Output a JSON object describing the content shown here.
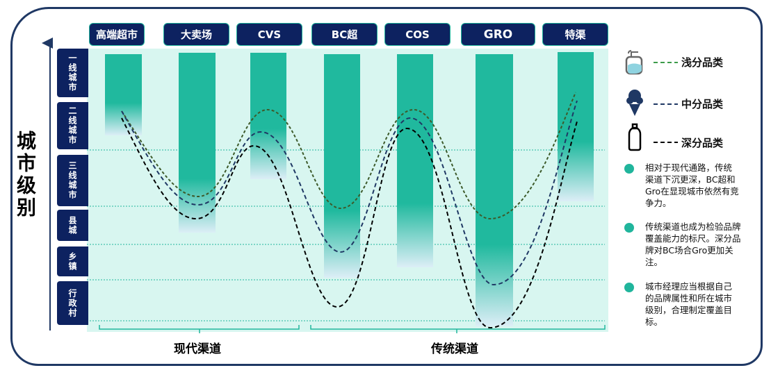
{
  "y_axis_title": "城市级别",
  "channels": [
    "高端超市",
    "大卖场",
    "CVS",
    "BC超",
    "COS",
    "GRO",
    "特渠"
  ],
  "city_tiers": [
    "一线城市",
    "二线城市",
    "三线城市",
    "县城",
    "乡镇",
    "行政村"
  ],
  "groups": [
    "现代渠道",
    "传统渠道"
  ],
  "legend": [
    {
      "icon": "lotion-bottle-icon",
      "label": "浅分品类",
      "color": "#3d6b2e"
    },
    {
      "icon": "ice-cream-icon",
      "label": "中分品类",
      "color": "#1f3864"
    },
    {
      "icon": "water-bottle-icon",
      "label": "深分品类",
      "color": "#000000"
    }
  ],
  "notes": [
    "相对于现代通路，传统渠道下沉更深，BC超和Gro在显现城市依然有竞争力。",
    "传统渠道也成为检验品牌覆盖能力的标尺。深分品牌对BC场合Gro更加关注。",
    "城市经理应当根据自己的品牌属性和所在城市级别，合理制定覆盖目标。"
  ],
  "colors": {
    "accent": "#20b59c",
    "navy": "#0d2260",
    "background": "#d8f6f0"
  }
}
